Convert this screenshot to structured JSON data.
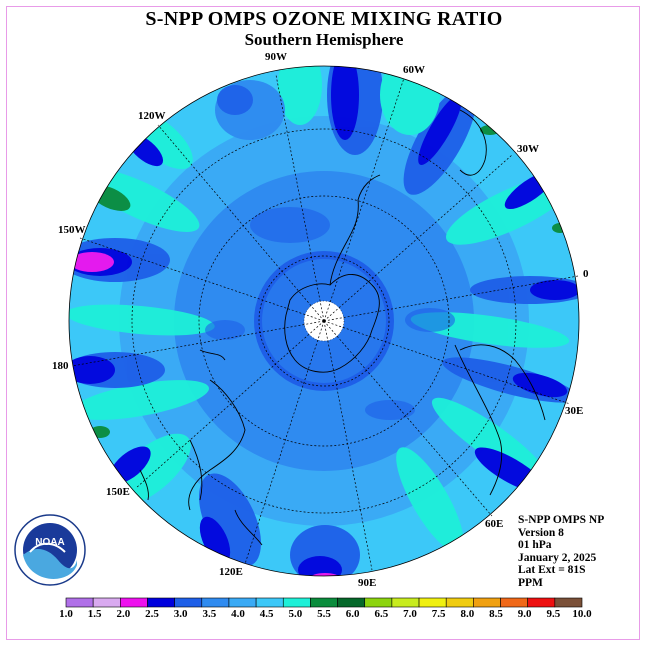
{
  "title": "S-NPP OMPS OZONE MIXING RATIO",
  "subtitle": "Southern Hemisphere",
  "longitude_labels": [
    {
      "id": "lon-90w",
      "text": "90W"
    },
    {
      "id": "lon-60w",
      "text": "60W"
    },
    {
      "id": "lon-120w",
      "text": "120W"
    },
    {
      "id": "lon-30w",
      "text": "30W"
    },
    {
      "id": "lon-150w",
      "text": "150W"
    },
    {
      "id": "lon-0",
      "text": "0"
    },
    {
      "id": "lon-180",
      "text": "180"
    },
    {
      "id": "lon-30e",
      "text": "30E"
    },
    {
      "id": "lon-150e",
      "text": "150E"
    },
    {
      "id": "lon-60e",
      "text": "60E"
    },
    {
      "id": "lon-120e",
      "text": "120E"
    },
    {
      "id": "lon-90e",
      "text": "90E"
    }
  ],
  "info": {
    "product": "S-NPP OMPS NP",
    "version": "Version 8",
    "level": "01 hPa",
    "date": "January 2, 2025",
    "lat_ext": "Lat Ext = 81S",
    "units": "PPM"
  },
  "logo": {
    "text": "NOAA"
  },
  "colorbar": {
    "labels": [
      "1.0",
      "1.5",
      "2.0",
      "2.5",
      "3.0",
      "3.5",
      "4.0",
      "4.5",
      "5.0",
      "5.5",
      "6.0",
      "6.5",
      "7.0",
      "7.5",
      "8.0",
      "8.5",
      "9.0",
      "9.5",
      "10.0"
    ],
    "colors": [
      "#b070e8",
      "#d9aaf0",
      "#ee11ee",
      "#0000dd",
      "#1e5fe8",
      "#2f8bf0",
      "#3aaaf5",
      "#3cc8f8",
      "#1ef0d8",
      "#0a8c3c",
      "#05682a",
      "#8cd40e",
      "#c8ec1e",
      "#f0f010",
      "#f0cc10",
      "#f0a010",
      "#f06818",
      "#ee1010",
      "#7a5038"
    ]
  }
}
